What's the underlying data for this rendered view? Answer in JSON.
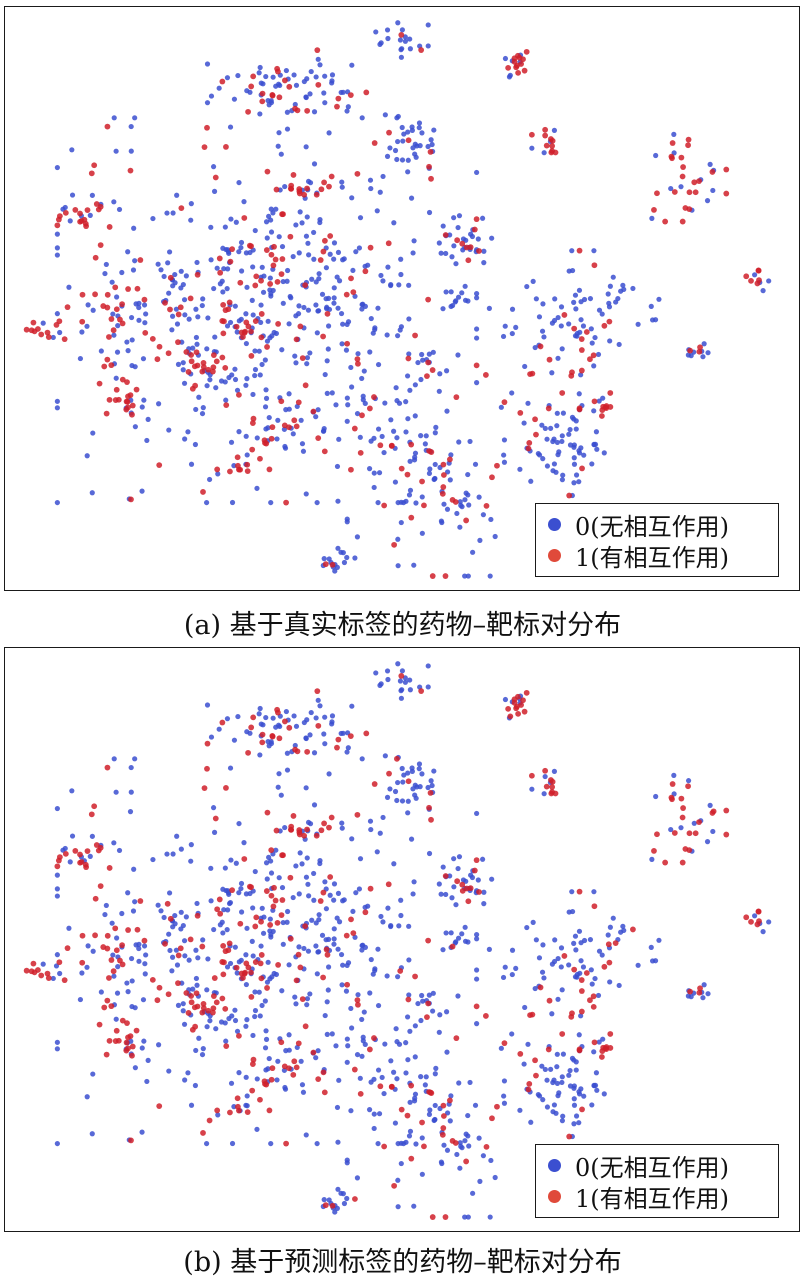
{
  "colors": {
    "class0": "#3b4fd0",
    "class1": "#d0202a"
  },
  "panels": [
    {
      "caption": "(a) 基于真实标签的药物–靶标对分布"
    },
    {
      "caption": "(b) 基于预测标签的药物–靶标对分布"
    }
  ],
  "legend": {
    "items": [
      {
        "label": "0(无相互作用)",
        "color": "#3b4fd0"
      },
      {
        "label": "1(有相互作用)",
        "color": "#e04a3a"
      }
    ]
  },
  "chart_data": [
    {
      "type": "scatter",
      "title": "",
      "xlabel": "",
      "ylabel": "",
      "legend_position": "bottom-right",
      "series": [
        {
          "name": "0(无相互作用)",
          "color": "#3b4fd0"
        },
        {
          "name": "1(有相互作用)",
          "color": "#d0202a"
        }
      ],
      "clusters": [
        {
          "center": [
            0.365,
            0.14
          ],
          "spread": [
            0.05,
            0.03
          ],
          "n0": 55,
          "n1": 22
        },
        {
          "center": [
            0.5,
            0.06
          ],
          "spread": [
            0.015,
            0.015
          ],
          "n0": 18,
          "n1": 2
        },
        {
          "center": [
            0.64,
            0.1
          ],
          "spread": [
            0.012,
            0.012
          ],
          "n0": 6,
          "n1": 12
        },
        {
          "center": [
            0.51,
            0.24
          ],
          "spread": [
            0.02,
            0.025
          ],
          "n0": 30,
          "n1": 3
        },
        {
          "center": [
            0.69,
            0.23
          ],
          "spread": [
            0.012,
            0.012
          ],
          "n0": 4,
          "n1": 10
        },
        {
          "center": [
            0.86,
            0.28
          ],
          "spread": [
            0.022,
            0.04
          ],
          "n0": 12,
          "n1": 22
        },
        {
          "center": [
            0.375,
            0.31
          ],
          "spread": [
            0.015,
            0.01
          ],
          "n0": 3,
          "n1": 14
        },
        {
          "center": [
            0.1,
            0.36
          ],
          "spread": [
            0.015,
            0.01
          ],
          "n0": 4,
          "n1": 14
        },
        {
          "center": [
            0.33,
            0.52
          ],
          "spread": [
            0.12,
            0.15
          ],
          "n0": 420,
          "n1": 115
        },
        {
          "center": [
            0.58,
            0.4
          ],
          "spread": [
            0.015,
            0.02
          ],
          "n0": 22,
          "n1": 8
        },
        {
          "center": [
            0.57,
            0.5
          ],
          "spread": [
            0.01,
            0.01
          ],
          "n0": 10,
          "n1": 0
        },
        {
          "center": [
            0.72,
            0.55
          ],
          "spread": [
            0.05,
            0.06
          ],
          "n0": 70,
          "n1": 18
        },
        {
          "center": [
            0.05,
            0.55
          ],
          "spread": [
            0.015,
            0.01
          ],
          "n0": 2,
          "n1": 10
        },
        {
          "center": [
            0.14,
            0.54
          ],
          "spread": [
            0.03,
            0.05
          ],
          "n0": 18,
          "n1": 20
        },
        {
          "center": [
            0.15,
            0.68
          ],
          "spread": [
            0.01,
            0.02
          ],
          "n0": 4,
          "n1": 14
        },
        {
          "center": [
            0.53,
            0.6
          ],
          "spread": [
            0.01,
            0.008
          ],
          "n0": 6,
          "n1": 2
        },
        {
          "center": [
            0.87,
            0.59
          ],
          "spread": [
            0.01,
            0.008
          ],
          "n0": 8,
          "n1": 3
        },
        {
          "center": [
            0.95,
            0.47
          ],
          "spread": [
            0.008,
            0.01
          ],
          "n0": 4,
          "n1": 6
        },
        {
          "center": [
            0.53,
            0.8
          ],
          "spread": [
            0.045,
            0.08
          ],
          "n0": 85,
          "n1": 32
        },
        {
          "center": [
            0.7,
            0.75
          ],
          "spread": [
            0.03,
            0.04
          ],
          "n0": 60,
          "n1": 10
        },
        {
          "center": [
            0.75,
            0.69
          ],
          "spread": [
            0.012,
            0.008
          ],
          "n0": 2,
          "n1": 10
        },
        {
          "center": [
            0.3,
            0.79
          ],
          "spread": [
            0.015,
            0.01
          ],
          "n0": 2,
          "n1": 10
        },
        {
          "center": [
            0.34,
            0.73
          ],
          "spread": [
            0.025,
            0.015
          ],
          "n0": 10,
          "n1": 10
        },
        {
          "center": [
            0.42,
            0.95
          ],
          "spread": [
            0.012,
            0.01
          ],
          "n0": 14,
          "n1": 2
        },
        {
          "center": [
            0.3,
            0.55
          ],
          "spread": [
            0.02,
            0.015
          ],
          "n0": 6,
          "n1": 12
        },
        {
          "center": [
            0.25,
            0.62
          ],
          "spread": [
            0.02,
            0.02
          ],
          "n0": 8,
          "n1": 16
        }
      ]
    },
    {
      "type": "scatter",
      "title": "",
      "xlabel": "",
      "ylabel": "",
      "legend_position": "bottom-right",
      "series": [
        {
          "name": "0(无相互作用)",
          "color": "#3b4fd0"
        },
        {
          "name": "1(有相互作用)",
          "color": "#d0202a"
        }
      ],
      "clusters": "same as panel (a), predicted labels"
    }
  ]
}
